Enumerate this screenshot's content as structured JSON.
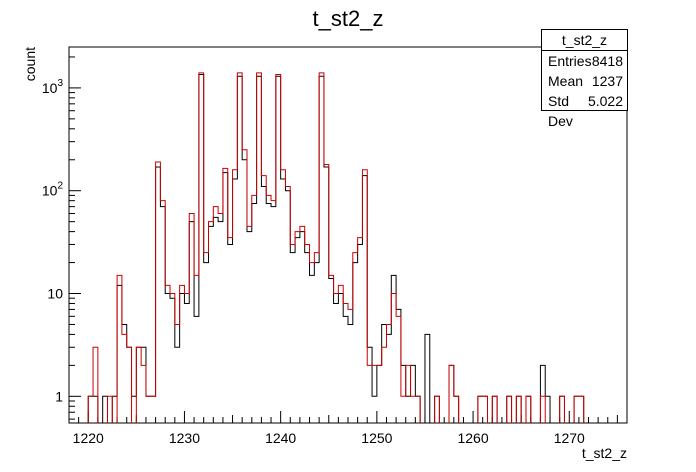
{
  "chart_data": {
    "type": "histogram",
    "title": "t_st2_z",
    "xlabel": "t_st2_z",
    "ylabel": "count",
    "xlim": [
      1218,
      1276
    ],
    "ylim": [
      0.55,
      2500
    ],
    "yscale": "log",
    "bin_width": 0.5,
    "x_ticks": [
      1220,
      1230,
      1240,
      1250,
      1260,
      1270
    ],
    "y_ticks": [
      {
        "value": 1,
        "label": "1"
      },
      {
        "value": 10,
        "label": "10"
      },
      {
        "value": 100,
        "label": "10^2"
      },
      {
        "value": 1000,
        "label": "10^3"
      }
    ],
    "series": [
      {
        "color": "#000000",
        "bins": [
          [
            1220,
            1
          ],
          [
            1220.5,
            1
          ],
          [
            1221.5,
            1
          ],
          [
            1222.5,
            1
          ],
          [
            1223,
            12
          ],
          [
            1223.5,
            5
          ],
          [
            1224,
            3
          ],
          [
            1224.5,
            1
          ],
          [
            1225,
            3
          ],
          [
            1225.5,
            3
          ],
          [
            1226,
            1
          ],
          [
            1226.5,
            1
          ],
          [
            1227,
            170
          ],
          [
            1227.5,
            70
          ],
          [
            1228,
            10
          ],
          [
            1228.5,
            9
          ],
          [
            1229,
            3
          ],
          [
            1229.5,
            10
          ],
          [
            1230,
            8
          ],
          [
            1230.5,
            50
          ],
          [
            1231,
            6
          ],
          [
            1231.5,
            1350
          ],
          [
            1232,
            20
          ],
          [
            1232.5,
            45
          ],
          [
            1233,
            55
          ],
          [
            1233.5,
            50
          ],
          [
            1234,
            150
          ],
          [
            1234.5,
            30
          ],
          [
            1235,
            130
          ],
          [
            1235.5,
            1300
          ],
          [
            1236,
            200
          ],
          [
            1236.5,
            40
          ],
          [
            1237,
            75
          ],
          [
            1237.5,
            1300
          ],
          [
            1238,
            110
          ],
          [
            1238.5,
            75
          ],
          [
            1239,
            70
          ],
          [
            1239.5,
            1300
          ],
          [
            1240,
            130
          ],
          [
            1240.5,
            100
          ],
          [
            1241,
            25
          ],
          [
            1241.5,
            35
          ],
          [
            1242,
            40
          ],
          [
            1242.5,
            25
          ],
          [
            1243,
            15
          ],
          [
            1243.5,
            20
          ],
          [
            1244,
            1300
          ],
          [
            1244.5,
            170
          ],
          [
            1245,
            14
          ],
          [
            1245.5,
            8
          ],
          [
            1246,
            10
          ],
          [
            1246.5,
            6
          ],
          [
            1247,
            5
          ],
          [
            1247.5,
            20
          ],
          [
            1248,
            30
          ],
          [
            1248.5,
            140
          ],
          [
            1249,
            3
          ],
          [
            1249.5,
            1
          ],
          [
            1250,
            2
          ],
          [
            1250.5,
            5
          ],
          [
            1251,
            4
          ],
          [
            1251.5,
            15
          ],
          [
            1252,
            7
          ],
          [
            1252.5,
            2
          ],
          [
            1253,
            1
          ],
          [
            1253.5,
            2
          ],
          [
            1254,
            1
          ],
          [
            1255,
            4
          ],
          [
            1256,
            1
          ],
          [
            1257.5,
            2
          ],
          [
            1258,
            1
          ],
          [
            1260.5,
            1
          ],
          [
            1261,
            1
          ],
          [
            1262,
            1
          ],
          [
            1263.5,
            1
          ],
          [
            1264.5,
            1
          ],
          [
            1265.5,
            1
          ],
          [
            1267,
            2
          ],
          [
            1267.5,
            1
          ],
          [
            1269,
            1
          ],
          [
            1270.5,
            1
          ],
          [
            1271,
            1
          ]
        ]
      },
      {
        "color": "#cc0000",
        "bins": [
          [
            1220,
            1
          ],
          [
            1220.5,
            3
          ],
          [
            1222,
            1
          ],
          [
            1223,
            15
          ],
          [
            1223.5,
            4
          ],
          [
            1224,
            3
          ],
          [
            1225,
            3
          ],
          [
            1225.5,
            2
          ],
          [
            1226,
            1
          ],
          [
            1226.5,
            1
          ],
          [
            1227,
            190
          ],
          [
            1227.5,
            80
          ],
          [
            1228,
            12
          ],
          [
            1228.5,
            10
          ],
          [
            1229,
            5
          ],
          [
            1229.5,
            12
          ],
          [
            1230,
            10
          ],
          [
            1230.5,
            60
          ],
          [
            1231,
            15
          ],
          [
            1231.5,
            1400
          ],
          [
            1232,
            25
          ],
          [
            1232.5,
            50
          ],
          [
            1233,
            70
          ],
          [
            1233.5,
            60
          ],
          [
            1234,
            165
          ],
          [
            1234.5,
            35
          ],
          [
            1235,
            160
          ],
          [
            1235.5,
            1400
          ],
          [
            1236,
            250
          ],
          [
            1236.5,
            45
          ],
          [
            1237,
            90
          ],
          [
            1237.5,
            1400
          ],
          [
            1238,
            140
          ],
          [
            1238.5,
            90
          ],
          [
            1239,
            80
          ],
          [
            1239.5,
            1350
          ],
          [
            1240,
            160
          ],
          [
            1240.5,
            110
          ],
          [
            1241,
            30
          ],
          [
            1241.5,
            40
          ],
          [
            1242,
            45
          ],
          [
            1242.5,
            30
          ],
          [
            1243,
            20
          ],
          [
            1243.5,
            25
          ],
          [
            1244,
            1400
          ],
          [
            1244.5,
            180
          ],
          [
            1245,
            15
          ],
          [
            1245.5,
            10
          ],
          [
            1246,
            12
          ],
          [
            1246.5,
            8
          ],
          [
            1247,
            7
          ],
          [
            1247.5,
            25
          ],
          [
            1248,
            35
          ],
          [
            1248.5,
            160
          ],
          [
            1249,
            2
          ],
          [
            1249.5,
            2
          ],
          [
            1250,
            2
          ],
          [
            1250.5,
            3
          ],
          [
            1251,
            5
          ],
          [
            1251.5,
            10
          ],
          [
            1252,
            6
          ],
          [
            1252.5,
            1
          ],
          [
            1253,
            2
          ],
          [
            1253.5,
            1
          ],
          [
            1254,
            1
          ],
          [
            1256,
            1
          ],
          [
            1257.5,
            2
          ],
          [
            1258,
            1
          ],
          [
            1260.5,
            1
          ],
          [
            1261,
            1
          ],
          [
            1262,
            1
          ],
          [
            1263.5,
            1
          ],
          [
            1264.5,
            1
          ],
          [
            1265.5,
            1
          ],
          [
            1267,
            1
          ],
          [
            1269,
            1
          ],
          [
            1270.5,
            1
          ],
          [
            1271,
            1
          ]
        ]
      }
    ]
  },
  "stats_box": {
    "title": "t_st2_z",
    "rows": [
      {
        "label": "Entries",
        "value": "8418"
      },
      {
        "label": "Mean",
        "value": "1237"
      },
      {
        "label": "Std Dev",
        "value": "5.022"
      }
    ]
  }
}
